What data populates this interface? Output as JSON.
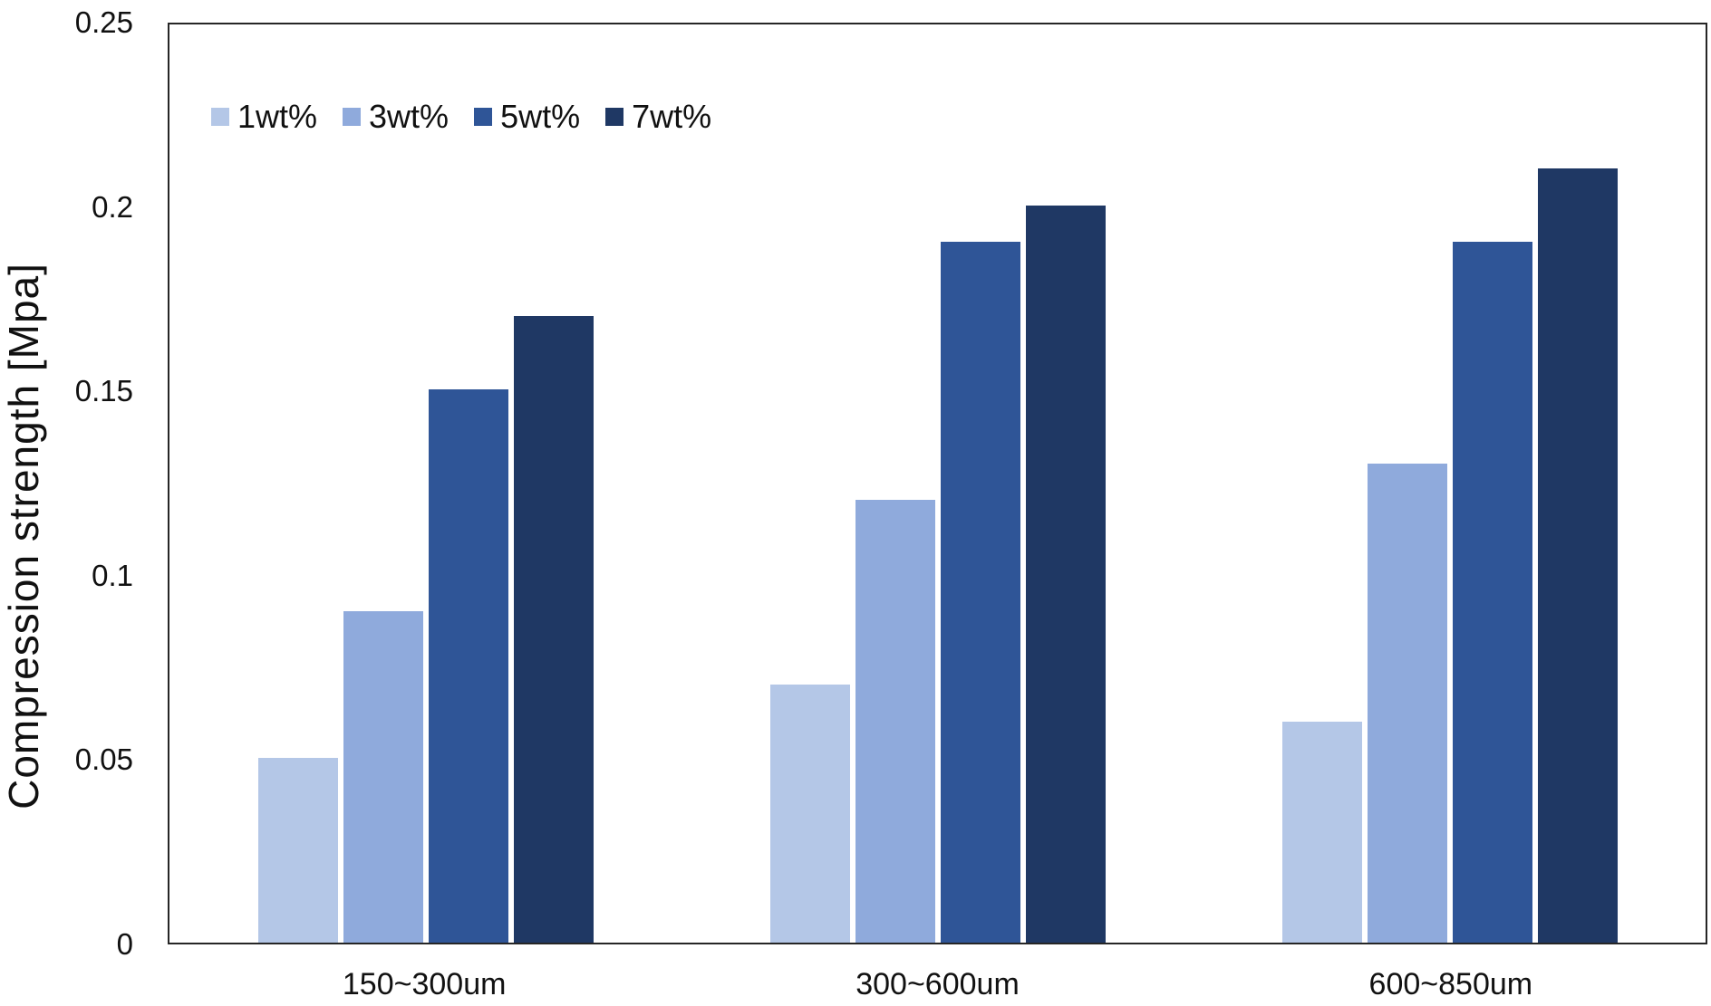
{
  "chart_data": {
    "type": "bar",
    "title": "",
    "categories": [
      "150~300um",
      "300~600um",
      "600~850um"
    ],
    "series": [
      {
        "name": "1wt%",
        "color": "#b4c7e7",
        "values": [
          0.05,
          0.07,
          0.06
        ]
      },
      {
        "name": "3wt%",
        "color": "#8faadc",
        "values": [
          0.09,
          0.12,
          0.13
        ]
      },
      {
        "name": "5wt%",
        "color": "#2f5597",
        "values": [
          0.15,
          0.19,
          0.19
        ]
      },
      {
        "name": "7wt%",
        "color": "#1f3864",
        "values": [
          0.17,
          0.2,
          0.21
        ]
      }
    ],
    "xlabel": "",
    "ylabel": "Compression strength [Mpa]",
    "ylim": [
      0,
      0.25
    ],
    "yticks": [
      0,
      0.05,
      0.1,
      0.15,
      0.2,
      0.25
    ],
    "ytick_labels": [
      "0",
      "0.05",
      "0.1",
      "0.15",
      "0.2",
      "0.25"
    ],
    "grid": false,
    "legend_position": "top-left-inside",
    "frame": {
      "border_color": "#262626",
      "background": "#ffffff"
    },
    "text_color": "#111111"
  }
}
